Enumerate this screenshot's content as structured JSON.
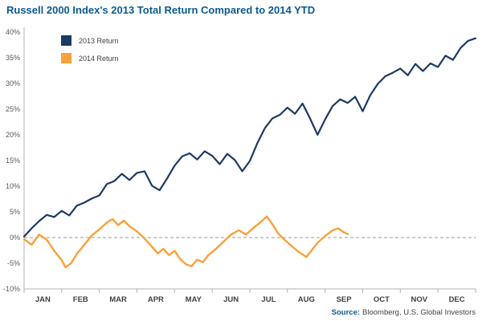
{
  "page": {
    "title": "Russell 2000 Index's 2013 Total Return Compared to 2014 YTD",
    "source_label": "Source:",
    "source_text": "Bloomberg, U.S. Global Investors"
  },
  "chart_data": {
    "type": "line",
    "title": "Russell 2000 Index's 2013 Total Return Compared to 2014 YTD",
    "x_axis": {
      "months": [
        "JAN",
        "FEB",
        "MAR",
        "APR",
        "MAY",
        "JUN",
        "JUL",
        "AUG",
        "SEP",
        "OCT",
        "NOV",
        "DEC"
      ],
      "range": [
        0,
        12
      ]
    },
    "y_axis": {
      "min": -10,
      "max": 40,
      "step": 5,
      "tick_suffix": "%"
    },
    "zero_line": {
      "style": "dashed",
      "color": "#9a9a9a",
      "y": 0
    },
    "grid": false,
    "legend_position": "top-left",
    "legend": [
      {
        "label": "2013 Return",
        "color": "#1b3a64"
      },
      {
        "label": "2014 Return",
        "color": "#f9a13a"
      }
    ],
    "series": [
      {
        "name": "2013 Return",
        "color": "#1b3a64",
        "width": 2.2,
        "x_span": 12,
        "values": [
          0.2,
          1.8,
          3.2,
          4.4,
          4.0,
          5.2,
          4.3,
          6.2,
          6.8,
          7.6,
          8.2,
          10.4,
          11.0,
          12.4,
          11.2,
          12.6,
          12.9,
          10.1,
          9.2,
          11.5,
          14.0,
          15.8,
          16.4,
          15.2,
          16.8,
          15.9,
          14.3,
          16.3,
          15.1,
          12.9,
          14.9,
          18.4,
          21.3,
          23.2,
          23.9,
          25.3,
          24.1,
          26.1,
          23.2,
          20.0,
          23.0,
          25.6,
          26.9,
          26.2,
          27.4,
          24.6,
          27.7,
          29.9,
          31.4,
          32.1,
          32.9,
          31.6,
          33.8,
          32.4,
          33.9,
          33.2,
          35.4,
          34.6,
          36.9,
          38.3,
          38.8
        ]
      },
      {
        "name": "2014 Return",
        "color": "#f9a13a",
        "width": 2.4,
        "x": [
          0.0,
          0.2,
          0.4,
          0.6,
          0.8,
          1.0,
          1.1,
          1.25,
          1.4,
          1.6,
          1.8,
          2.0,
          2.2,
          2.35,
          2.5,
          2.65,
          2.8,
          3.0,
          3.2,
          3.4,
          3.55,
          3.7,
          3.85,
          4.0,
          4.15,
          4.3,
          4.45,
          4.6,
          4.75,
          4.9,
          5.1,
          5.3,
          5.5,
          5.7,
          5.9,
          6.1,
          6.3,
          6.45,
          6.6,
          6.75,
          6.9,
          7.1,
          7.3,
          7.5,
          7.65,
          7.8,
          8.0,
          8.2,
          8.35,
          8.5,
          8.6
        ],
        "values": [
          -0.3,
          -1.4,
          0.6,
          -0.4,
          -2.6,
          -4.4,
          -5.8,
          -5.0,
          -3.2,
          -1.4,
          0.4,
          1.6,
          2.9,
          3.6,
          2.4,
          3.3,
          2.2,
          1.2,
          -0.2,
          -1.8,
          -3.1,
          -2.2,
          -3.4,
          -2.6,
          -4.2,
          -5.2,
          -5.6,
          -4.3,
          -4.8,
          -3.4,
          -2.2,
          -0.8,
          0.6,
          1.4,
          0.6,
          1.9,
          3.1,
          4.1,
          2.6,
          0.8,
          -0.3,
          -1.6,
          -2.8,
          -3.8,
          -2.4,
          -1.0,
          0.3,
          1.4,
          1.8,
          1.0,
          0.7
        ]
      }
    ]
  }
}
